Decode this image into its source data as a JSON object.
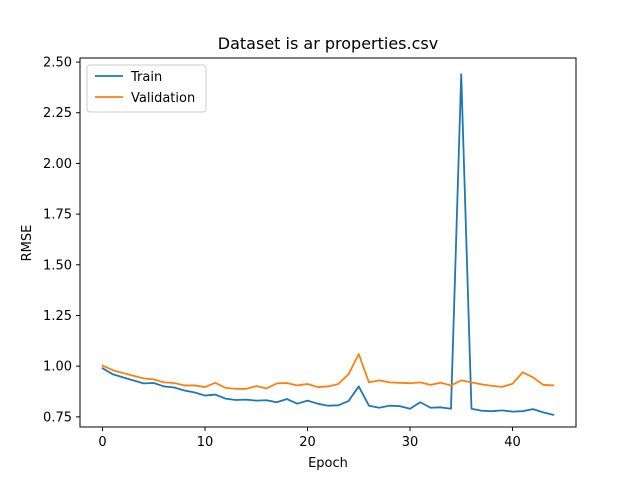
{
  "chart_data": {
    "type": "line",
    "title": "Dataset is ar properties.csv",
    "xlabel": "Epoch",
    "ylabel": "RMSE",
    "xlim": [
      -2.2,
      46.2
    ],
    "ylim": [
      0.7,
      2.52
    ],
    "xticks": [
      0,
      10,
      20,
      30,
      40
    ],
    "yticks": [
      0.75,
      1.0,
      1.25,
      1.5,
      1.75,
      2.0,
      2.25,
      2.5
    ],
    "ytick_labels": [
      "0.75",
      "1.00",
      "1.25",
      "1.50",
      "1.75",
      "2.00",
      "2.25",
      "2.50"
    ],
    "grid": false,
    "legend_position": "top-left",
    "x": [
      0,
      1,
      2,
      3,
      4,
      5,
      6,
      7,
      8,
      9,
      10,
      11,
      12,
      13,
      14,
      15,
      16,
      17,
      18,
      19,
      20,
      21,
      22,
      23,
      24,
      25,
      26,
      27,
      28,
      29,
      30,
      31,
      32,
      33,
      34,
      35,
      36,
      37,
      38,
      39,
      40,
      41,
      42,
      43,
      44
    ],
    "series": [
      {
        "name": "Train",
        "color": "#1f77b4",
        "values": [
          0.99,
          0.96,
          0.945,
          0.93,
          0.915,
          0.917,
          0.9,
          0.895,
          0.88,
          0.87,
          0.855,
          0.86,
          0.84,
          0.833,
          0.835,
          0.83,
          0.832,
          0.822,
          0.838,
          0.815,
          0.83,
          0.815,
          0.805,
          0.807,
          0.828,
          0.9,
          0.805,
          0.795,
          0.805,
          0.803,
          0.79,
          0.822,
          0.795,
          0.797,
          0.79,
          2.44,
          0.79,
          0.78,
          0.778,
          0.782,
          0.776,
          0.778,
          0.788,
          0.772,
          0.76
        ]
      },
      {
        "name": "Validation",
        "color": "#ff7f0e",
        "values": [
          1.003,
          0.98,
          0.966,
          0.953,
          0.94,
          0.935,
          0.92,
          0.917,
          0.905,
          0.905,
          0.897,
          0.918,
          0.893,
          0.888,
          0.888,
          0.902,
          0.89,
          0.915,
          0.917,
          0.905,
          0.912,
          0.897,
          0.9,
          0.912,
          0.96,
          1.06,
          0.92,
          0.93,
          0.92,
          0.918,
          0.916,
          0.92,
          0.908,
          0.918,
          0.905,
          0.93,
          0.92,
          0.91,
          0.903,
          0.898,
          0.913,
          0.97,
          0.945,
          0.908,
          0.905
        ]
      }
    ]
  }
}
